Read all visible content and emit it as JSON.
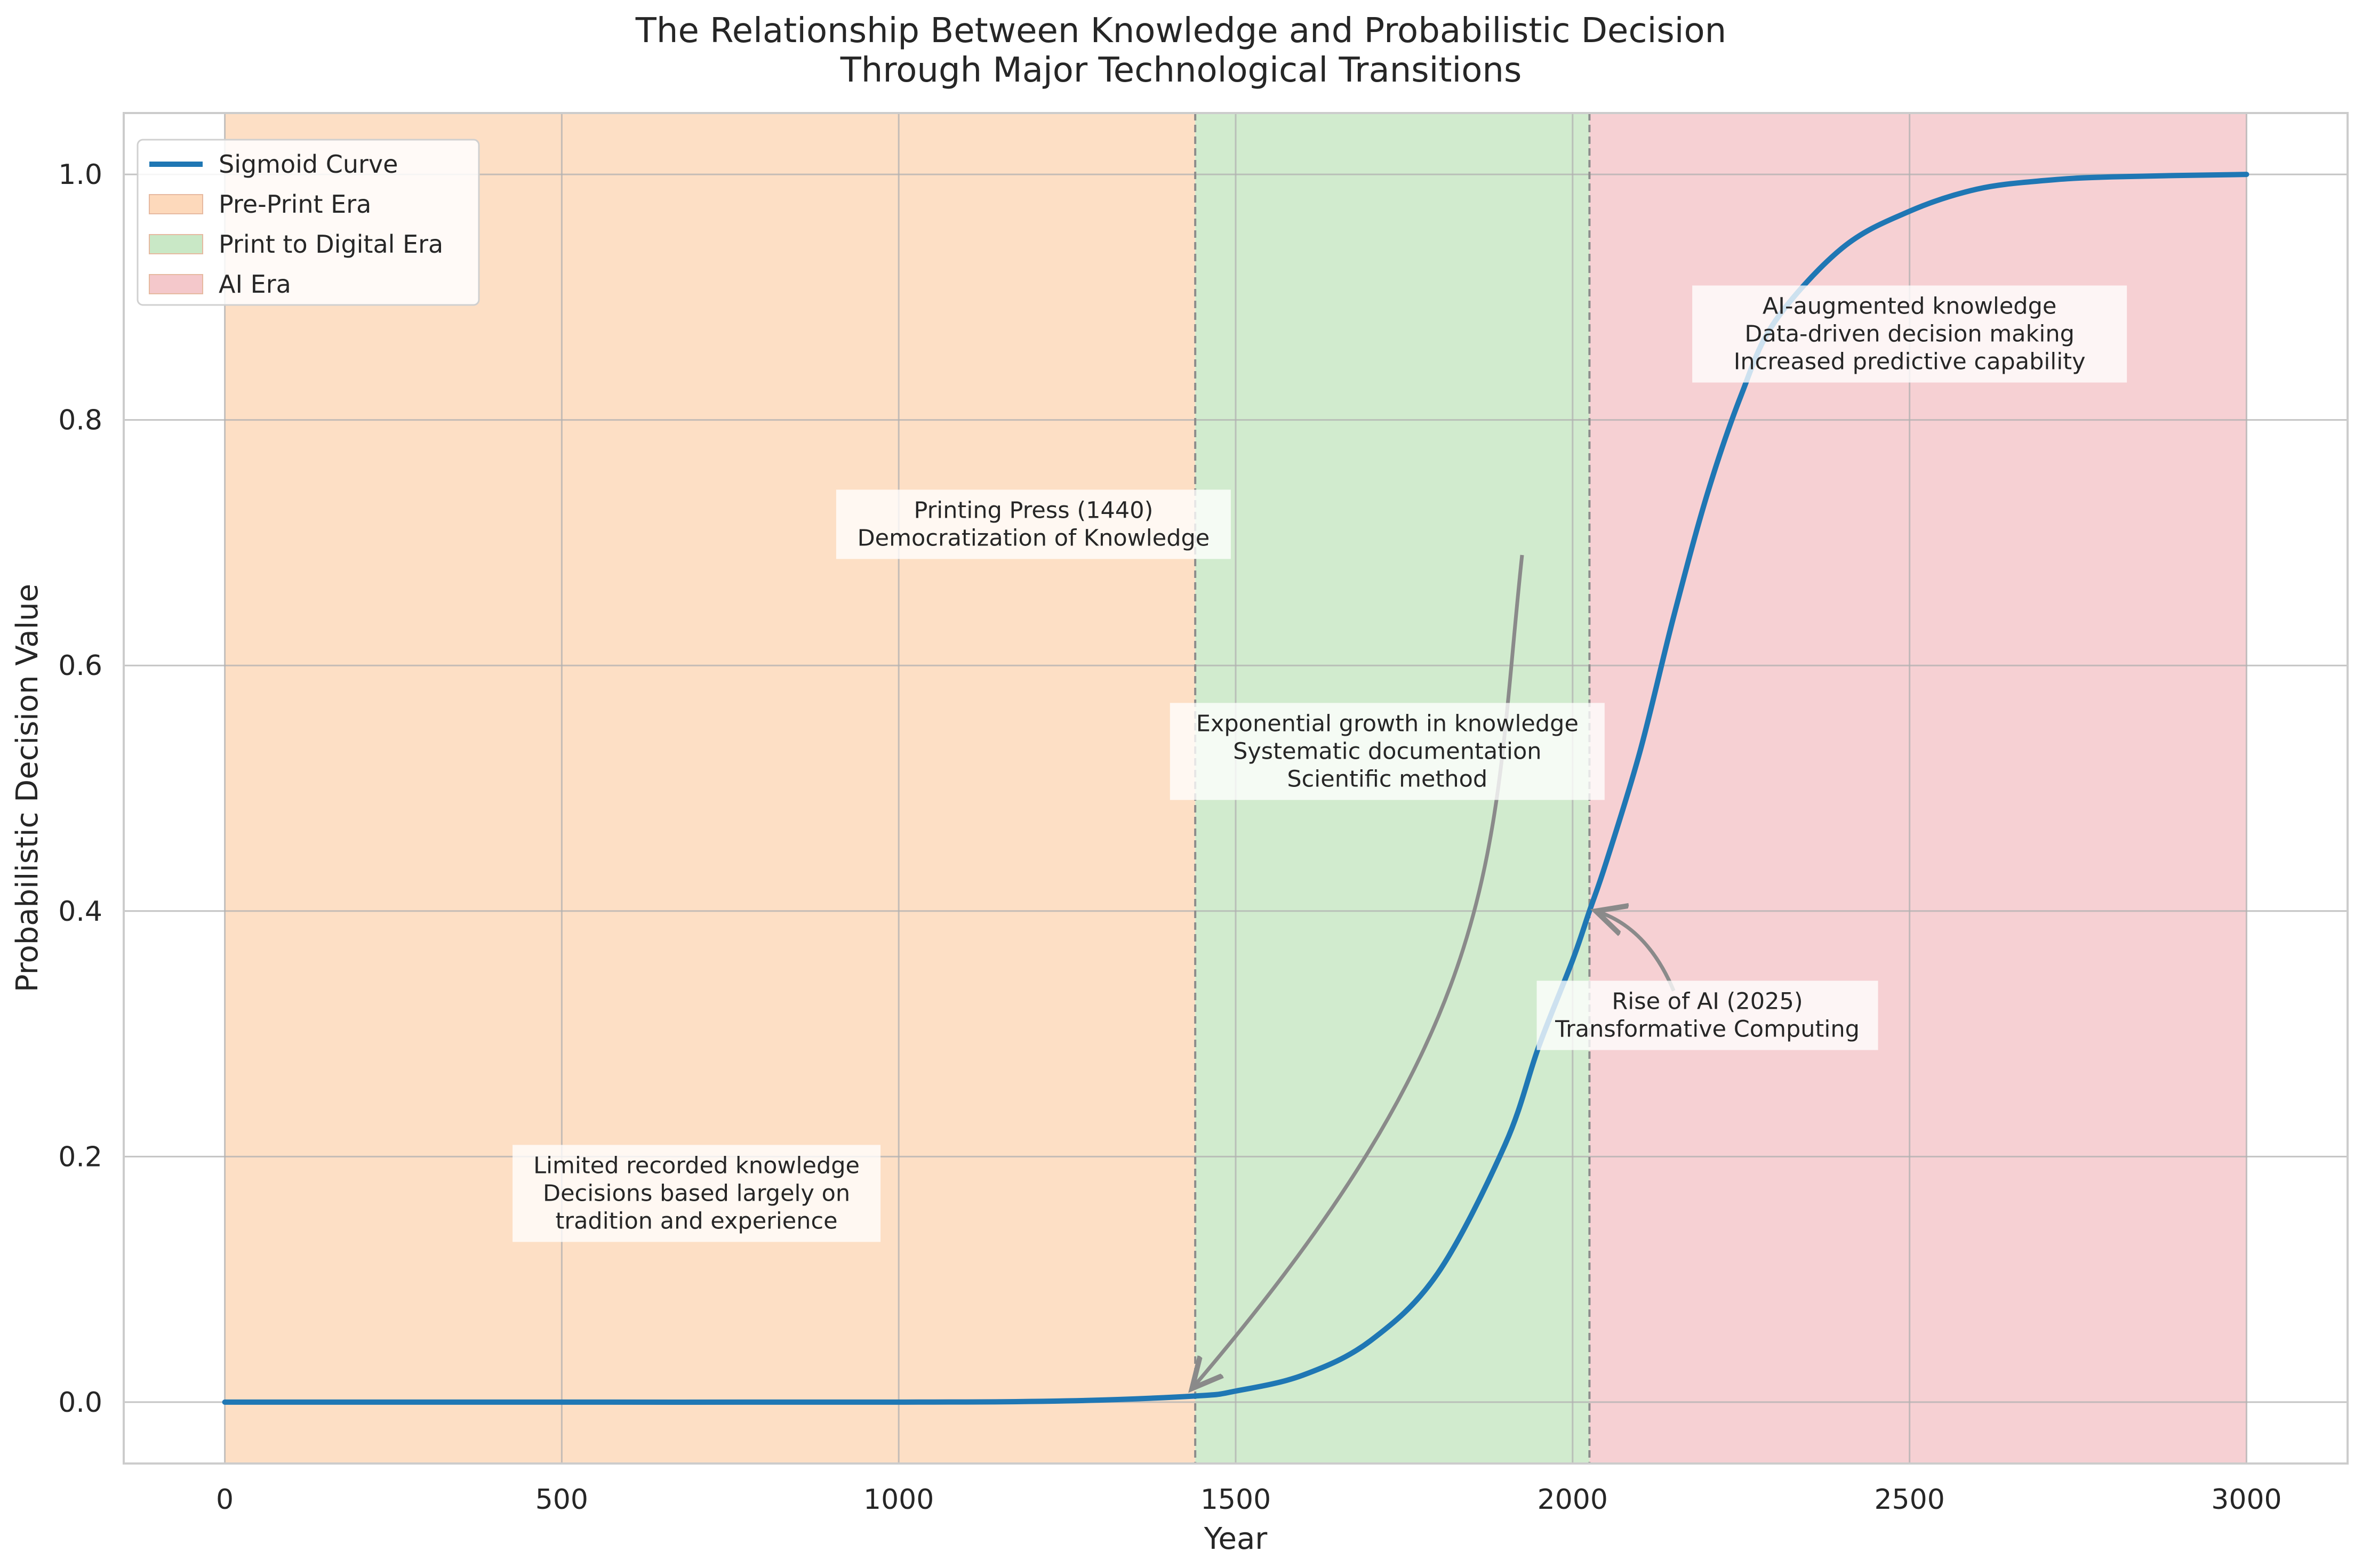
{
  "chart_data": {
    "type": "line",
    "title_lines": [
      "The Relationship Between Knowledge and Probabilistic Decision",
      "Through Major Technological Transitions"
    ],
    "xlabel": "Year",
    "ylabel": "Probabilistic Decision Value",
    "xlim": [
      -150,
      3150
    ],
    "ylim": [
      -0.05,
      1.05
    ],
    "xticks": [
      0,
      500,
      1000,
      1500,
      2000,
      2500,
      3000
    ],
    "xtick_labels": [
      "0",
      "500",
      "1000",
      "1500",
      "2000",
      "2500",
      "3000"
    ],
    "yticks": [
      0.0,
      0.2,
      0.4,
      0.6,
      0.8,
      1.0
    ],
    "ytick_labels": [
      "0.0",
      "0.2",
      "0.4",
      "0.6",
      "0.8",
      "1.0"
    ],
    "grid": true,
    "legend_position": "upper-left",
    "series": [
      {
        "name": "Sigmoid Curve",
        "color": "#1f77b4",
        "x": [
          0,
          500,
          1000,
          1250,
          1440,
          1500,
          1600,
          1700,
          1800,
          1900,
          1950,
          2000,
          2025,
          2050,
          2100,
          2150,
          2200,
          2250,
          2300,
          2400,
          2500,
          2600,
          2700,
          2800,
          3000
        ],
        "y": [
          0.0,
          0.0,
          0.0,
          0.001,
          0.005,
          0.009,
          0.022,
          0.05,
          0.105,
          0.21,
          0.29,
          0.36,
          0.4,
          0.44,
          0.53,
          0.64,
          0.74,
          0.82,
          0.88,
          0.94,
          0.97,
          0.988,
          0.995,
          0.998,
          1.0
        ]
      }
    ],
    "eras": [
      {
        "name": "Pre-Print Era",
        "start": 0,
        "end": 1440,
        "color": "#fdd9bb"
      },
      {
        "name": "Print to Digital Era",
        "start": 1440,
        "end": 2025,
        "color": "#c9e8c6"
      },
      {
        "name": "AI Era",
        "start": 2025,
        "end": 3000,
        "color": "#f4c8cb"
      }
    ],
    "vlines": [
      1440,
      2025
    ],
    "annotations": [
      {
        "lines": [
          "Printing Press (1440)",
          "Democratization of Knowledge"
        ],
        "x": 1200,
        "y": 0.715,
        "arrow_to": [
          1440,
          0.005
        ]
      },
      {
        "lines": [
          "Rise of AI (2025)",
          "Transformative Computing"
        ],
        "x": 2200,
        "y": 0.315,
        "arrow_to": [
          2025,
          0.4
        ]
      },
      {
        "lines": [
          "Limited recorded knowledge",
          "Decisions based largely on",
          "tradition and experience"
        ],
        "x": 700,
        "y": 0.17
      },
      {
        "lines": [
          "Exponential growth in knowledge",
          "Systematic documentation",
          "Scientific method"
        ],
        "x": 1725,
        "y": 0.53
      },
      {
        "lines": [
          "AI-augmented knowledge",
          "Data-driven decision making",
          "Increased predictive capability"
        ],
        "x": 2500,
        "y": 0.87
      }
    ]
  }
}
